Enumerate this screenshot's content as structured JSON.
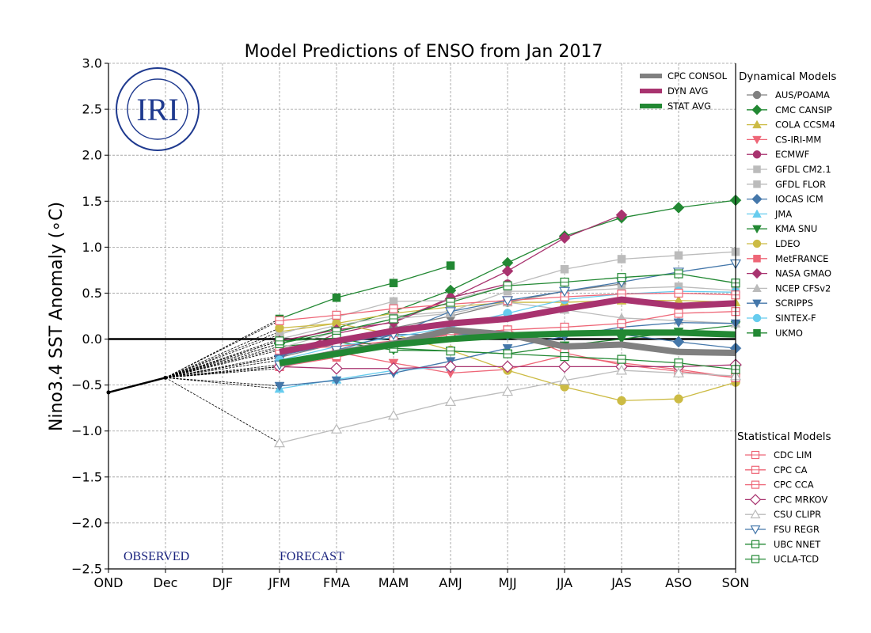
{
  "chart_data": {
    "type": "line",
    "title": "Model Predictions of ENSO from Jan 2017",
    "xlabel": "",
    "ylabel": "Nino3.4 SST Anomaly (∘C)",
    "ylabel_parts": {
      "text": "Nino3.4 SST Anomaly ( ",
      "degree": "∘",
      "unit": "C)"
    },
    "ylim": [
      -2.5,
      3.0
    ],
    "yticks": [
      3.0,
      2.5,
      2.0,
      1.5,
      1.0,
      0.5,
      0.0,
      -0.5,
      -1.0,
      -1.5,
      -2.0,
      -2.5
    ],
    "ytick_labels": [
      "3.0",
      "2.5",
      "2.0",
      "1.5",
      "1.0",
      "0.5",
      "0.0",
      "−0.5",
      "−1.0",
      "−1.5",
      "−2.0",
      "−2.5"
    ],
    "categories": [
      "OND",
      "Dec",
      "DJF",
      "JFM",
      "FMA",
      "MAM",
      "AMJ",
      "MJJ",
      "JJA",
      "JAS",
      "ASO",
      "SON"
    ],
    "grid": true,
    "annotations": {
      "observed": "OBSERVED",
      "forecast": "FORECAST"
    },
    "observed": {
      "x": [
        "OND",
        "Dec"
      ],
      "values": [
        -0.58,
        -0.42
      ],
      "color": "#000000"
    },
    "forecast_x": [
      "JFM",
      "FMA",
      "MAM",
      "AMJ",
      "MJJ",
      "JJA",
      "JAS",
      "ASO",
      "SON"
    ],
    "averages": [
      {
        "name": "CPC CONSOL",
        "color": "#808080",
        "values": [
          -0.27,
          -0.15,
          -0.05,
          0.1,
          0.05,
          -0.08,
          -0.06,
          -0.14,
          -0.15
        ]
      },
      {
        "name": "DYN AVG",
        "color": "#a8336f",
        "values": [
          -0.14,
          -0.02,
          0.09,
          0.17,
          0.22,
          0.33,
          0.43,
          0.36,
          0.39
        ]
      },
      {
        "name": "STAT AVG",
        "color": "#228833",
        "values": [
          -0.26,
          -0.16,
          -0.06,
          0.0,
          0.04,
          0.06,
          0.07,
          0.07,
          0.05
        ]
      }
    ],
    "legend_groups": [
      {
        "title": "Dynamical Models",
        "placement": "right"
      },
      {
        "title": "Statistical Models",
        "placement": "bottom-right"
      }
    ],
    "series": [
      {
        "name": "AUS/POAMA",
        "group": "dyn",
        "color": "#808080",
        "marker": "circle",
        "filled": true,
        "values": [
          -0.2,
          -0.05,
          0.12,
          0.25,
          0.4,
          0.52,
          0.6,
          null,
          null
        ]
      },
      {
        "name": "CMC CANSIP",
        "group": "dyn",
        "color": "#228833",
        "marker": "diamond",
        "filled": true,
        "values": [
          -0.05,
          0.12,
          0.3,
          0.53,
          0.83,
          1.12,
          1.32,
          1.43,
          1.51
        ]
      },
      {
        "name": "COLA CCSM4",
        "group": "dyn",
        "color": "#ccbb44",
        "marker": "triangle-up",
        "filled": true,
        "values": [
          0.08,
          0.17,
          0.28,
          0.35,
          0.4,
          0.4,
          0.42,
          0.42,
          0.4
        ]
      },
      {
        "name": "CS-IRI-MM",
        "group": "dyn",
        "color": "#ee6677",
        "marker": "triangle-down",
        "filled": true,
        "values": [
          -0.32,
          -0.14,
          -0.26,
          -0.37,
          -0.33,
          -0.18,
          -0.26,
          -0.33,
          -0.42
        ]
      },
      {
        "name": "ECMWF",
        "group": "dyn",
        "color": "#a8336f",
        "marker": "circle",
        "filled": true,
        "values": [
          -0.2,
          0.06,
          0.19,
          0.45,
          0.6,
          null,
          null,
          null,
          null
        ]
      },
      {
        "name": "GFDL CM2.1",
        "group": "dyn",
        "color": "#bbbbbb",
        "marker": "square",
        "filled": true,
        "values": [
          0.05,
          0.24,
          0.41,
          0.42,
          0.58,
          0.76,
          0.87,
          0.91,
          0.95
        ]
      },
      {
        "name": "GFDL FLOR",
        "group": "dyn",
        "color": "#bbbbbb",
        "marker": "square",
        "filled": true,
        "values": [
          0.0,
          0.15,
          0.25,
          0.3,
          0.52,
          0.52,
          0.55,
          0.57,
          0.53
        ]
      },
      {
        "name": "IOCAS ICM",
        "group": "dyn",
        "color": "#4477aa",
        "marker": "diamond",
        "filled": true,
        "values": [
          -0.18,
          -0.05,
          0.05,
          0.05,
          0.05,
          0.05,
          0.05,
          -0.03,
          -0.1
        ]
      },
      {
        "name": "JMA",
        "group": "dyn",
        "color": "#66ccee",
        "marker": "triangle-up",
        "filled": true,
        "values": [
          -0.54,
          -0.44,
          -0.34,
          -0.3,
          null,
          null,
          null,
          null,
          null
        ]
      },
      {
        "name": "KMA SNU",
        "group": "dyn",
        "color": "#228833",
        "marker": "triangle-down",
        "filled": true,
        "values": [
          -0.08,
          -0.03,
          -0.12,
          -0.13,
          -0.16,
          -0.07,
          0.0,
          0.08,
          0.15
        ]
      },
      {
        "name": "LDEO",
        "group": "dyn",
        "color": "#ccbb44",
        "marker": "circle",
        "filled": true,
        "values": [
          0.12,
          0.17,
          0.05,
          -0.12,
          -0.34,
          -0.52,
          -0.67,
          -0.65,
          -0.47
        ]
      },
      {
        "name": "MetFRANCE",
        "group": "dyn",
        "color": "#ee6677",
        "marker": "square",
        "filled": true,
        "values": [
          -0.3,
          -0.2,
          -0.05,
          0.05,
          0.1,
          null,
          null,
          null,
          null
        ]
      },
      {
        "name": "NASA GMAO",
        "group": "dyn",
        "color": "#a8336f",
        "marker": "diamond",
        "filled": true,
        "values": [
          -0.02,
          0.1,
          0.18,
          0.44,
          0.74,
          1.1,
          1.35,
          null,
          null
        ]
      },
      {
        "name": "NCEP CFSv2",
        "group": "dyn",
        "color": "#bbbbbb",
        "marker": "triangle-up",
        "filled": true,
        "values": [
          -0.1,
          0.08,
          0.22,
          0.28,
          0.4,
          0.32,
          0.23,
          0.2,
          0.17
        ]
      },
      {
        "name": "SCRIPPS",
        "group": "dyn",
        "color": "#4477aa",
        "marker": "triangle-down",
        "filled": true,
        "values": [
          -0.51,
          -0.45,
          -0.37,
          -0.24,
          -0.1,
          0.03,
          0.13,
          0.18,
          0.17
        ]
      },
      {
        "name": "SINTEX-F",
        "group": "dyn",
        "color": "#66ccee",
        "marker": "circle",
        "filled": true,
        "values": [
          -0.23,
          -0.08,
          0.02,
          0.13,
          0.28,
          0.43,
          0.49,
          0.52,
          0.51
        ]
      },
      {
        "name": "UKMO",
        "group": "dyn",
        "color": "#228833",
        "marker": "square",
        "filled": true,
        "values": [
          0.22,
          0.45,
          0.61,
          0.8,
          null,
          null,
          null,
          null,
          null
        ]
      },
      {
        "name": "CDC LIM",
        "group": "stat",
        "color": "#ee6677",
        "marker": "square",
        "filled": false,
        "values": [
          -0.3,
          -0.18,
          -0.05,
          0.05,
          0.1,
          0.13,
          0.17,
          0.28,
          0.3
        ]
      },
      {
        "name": "CPC CA",
        "group": "stat",
        "color": "#ee6677",
        "marker": "square",
        "filled": false,
        "values": [
          0.2,
          0.26,
          0.33,
          0.38,
          0.42,
          0.46,
          0.49,
          0.5,
          0.48
        ]
      },
      {
        "name": "CPC CCA",
        "group": "stat",
        "color": "#ee6677",
        "marker": "square",
        "filled": false,
        "values": [
          -0.12,
          -0.08,
          -0.02,
          0.05,
          0.1,
          -0.15,
          -0.28,
          -0.35,
          -0.42
        ]
      },
      {
        "name": "CPC MRKOV",
        "group": "stat",
        "color": "#a8336f",
        "marker": "diamond",
        "filled": false,
        "values": [
          -0.3,
          -0.32,
          -0.32,
          -0.3,
          -0.3,
          -0.3,
          -0.3,
          -0.3,
          -0.28
        ]
      },
      {
        "name": "CSU CLIPR",
        "group": "stat",
        "color": "#bbbbbb",
        "marker": "triangle-up",
        "filled": false,
        "values": [
          -1.13,
          -0.98,
          -0.83,
          -0.68,
          -0.57,
          -0.45,
          -0.34,
          -0.37,
          -0.4
        ]
      },
      {
        "name": "FSU REGR",
        "group": "stat",
        "color": "#4477aa",
        "marker": "triangle-down",
        "filled": false,
        "values": [
          -0.28,
          -0.12,
          0.05,
          0.3,
          0.42,
          0.52,
          0.62,
          0.73,
          0.82
        ]
      },
      {
        "name": "UBC NNET",
        "group": "stat",
        "color": "#228833",
        "marker": "square",
        "filled": false,
        "values": [
          -0.05,
          0.08,
          0.22,
          0.4,
          0.58,
          0.62,
          0.67,
          0.71,
          0.61
        ]
      },
      {
        "name": "UCLA-TCD",
        "group": "stat",
        "color": "#228833",
        "marker": "square",
        "filled": false,
        "values": [
          -0.02,
          0.01,
          -0.1,
          -0.13,
          -0.16,
          -0.19,
          -0.22,
          -0.26,
          -0.33
        ]
      }
    ]
  },
  "logo": {
    "text": "IRI",
    "color": "#1f3a8f"
  }
}
